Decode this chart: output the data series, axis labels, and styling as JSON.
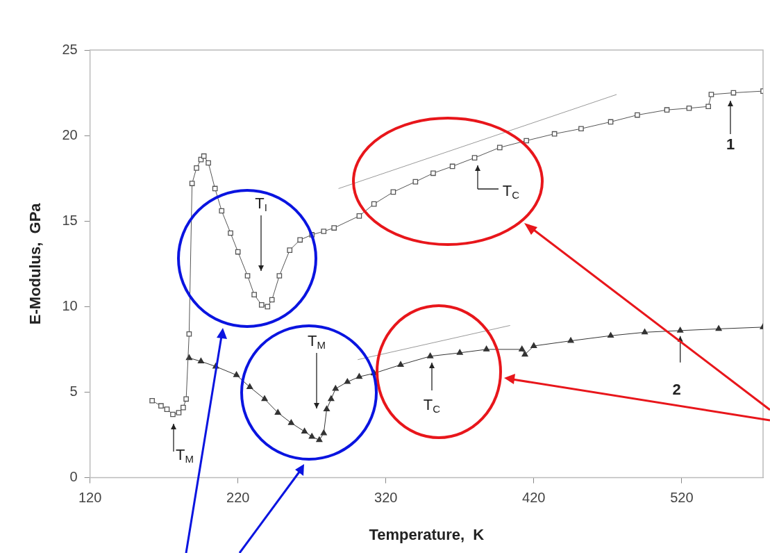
{
  "chart_data": {
    "type": "line",
    "xlabel": "Temperature,  K",
    "ylabel": "E-Modulus,  GPa",
    "xlim": [
      120,
      575
    ],
    "xticks": [
      120,
      220,
      320,
      420,
      520
    ],
    "ylim": [
      0,
      25
    ],
    "yticks": [
      0,
      5,
      10,
      15,
      20,
      25
    ],
    "grid": false,
    "legend": false,
    "series": [
      {
        "marker": "square",
        "color": "#555555",
        "x": [
          162,
          168,
          172,
          176,
          180,
          183,
          185,
          187,
          189,
          192,
          195,
          197,
          200,
          204.5,
          209,
          215,
          220,
          226.5,
          231,
          236,
          240,
          243,
          248,
          255,
          262,
          270,
          278,
          285,
          302,
          312,
          325,
          340,
          352,
          365,
          380,
          397,
          415,
          434,
          452,
          472,
          490,
          510,
          525,
          538,
          540,
          555,
          575
        ],
        "values": [
          4.5,
          4.2,
          4.0,
          3.7,
          3.8,
          4.1,
          4.6,
          8.4,
          17.2,
          18.1,
          18.6,
          18.8,
          18.4,
          16.9,
          15.6,
          14.3,
          13.2,
          11.8,
          10.7,
          10.1,
          10.0,
          10.4,
          11.8,
          13.3,
          13.9,
          14.2,
          14.4,
          14.6,
          15.3,
          16.0,
          16.7,
          17.3,
          17.8,
          18.2,
          18.7,
          19.3,
          19.7,
          20.1,
          20.4,
          20.8,
          21.2,
          21.5,
          21.6,
          21.7,
          22.4,
          22.5,
          22.6
        ]
      },
      {
        "marker": "triangle",
        "color": "#333333",
        "x": [
          187,
          195,
          205,
          219,
          228,
          238,
          247,
          256,
          265,
          270,
          275,
          278,
          280,
          283,
          286,
          294,
          302,
          312,
          330,
          350,
          370,
          388,
          412,
          414,
          420,
          445,
          472,
          495,
          519,
          545,
          575
        ],
        "values": [
          7.0,
          6.8,
          6.5,
          6.0,
          5.3,
          4.6,
          3.8,
          3.2,
          2.7,
          2.4,
          2.2,
          2.6,
          4.0,
          4.6,
          5.2,
          5.6,
          5.9,
          6.1,
          6.6,
          7.1,
          7.3,
          7.5,
          7.5,
          7.2,
          7.7,
          8.0,
          8.3,
          8.5,
          8.6,
          8.7,
          8.8
        ]
      },
      {
        "marker": "none",
        "color": "#999999",
        "x": [
          288,
          476
        ],
        "values": [
          16.9,
          22.4
        ]
      },
      {
        "marker": "none",
        "color": "#999999",
        "x": [
          301,
          404
        ],
        "values": [
          6.9,
          8.9
        ]
      }
    ],
    "annotations": [
      "T$_{I}$",
      "T$_{M}$",
      "T$_{M}$",
      "T$_{C}$",
      "T$_{C}$",
      "1",
      {
        "text": "2",
        "x": 519,
        "y": 8.6
      }
    ]
  }
}
